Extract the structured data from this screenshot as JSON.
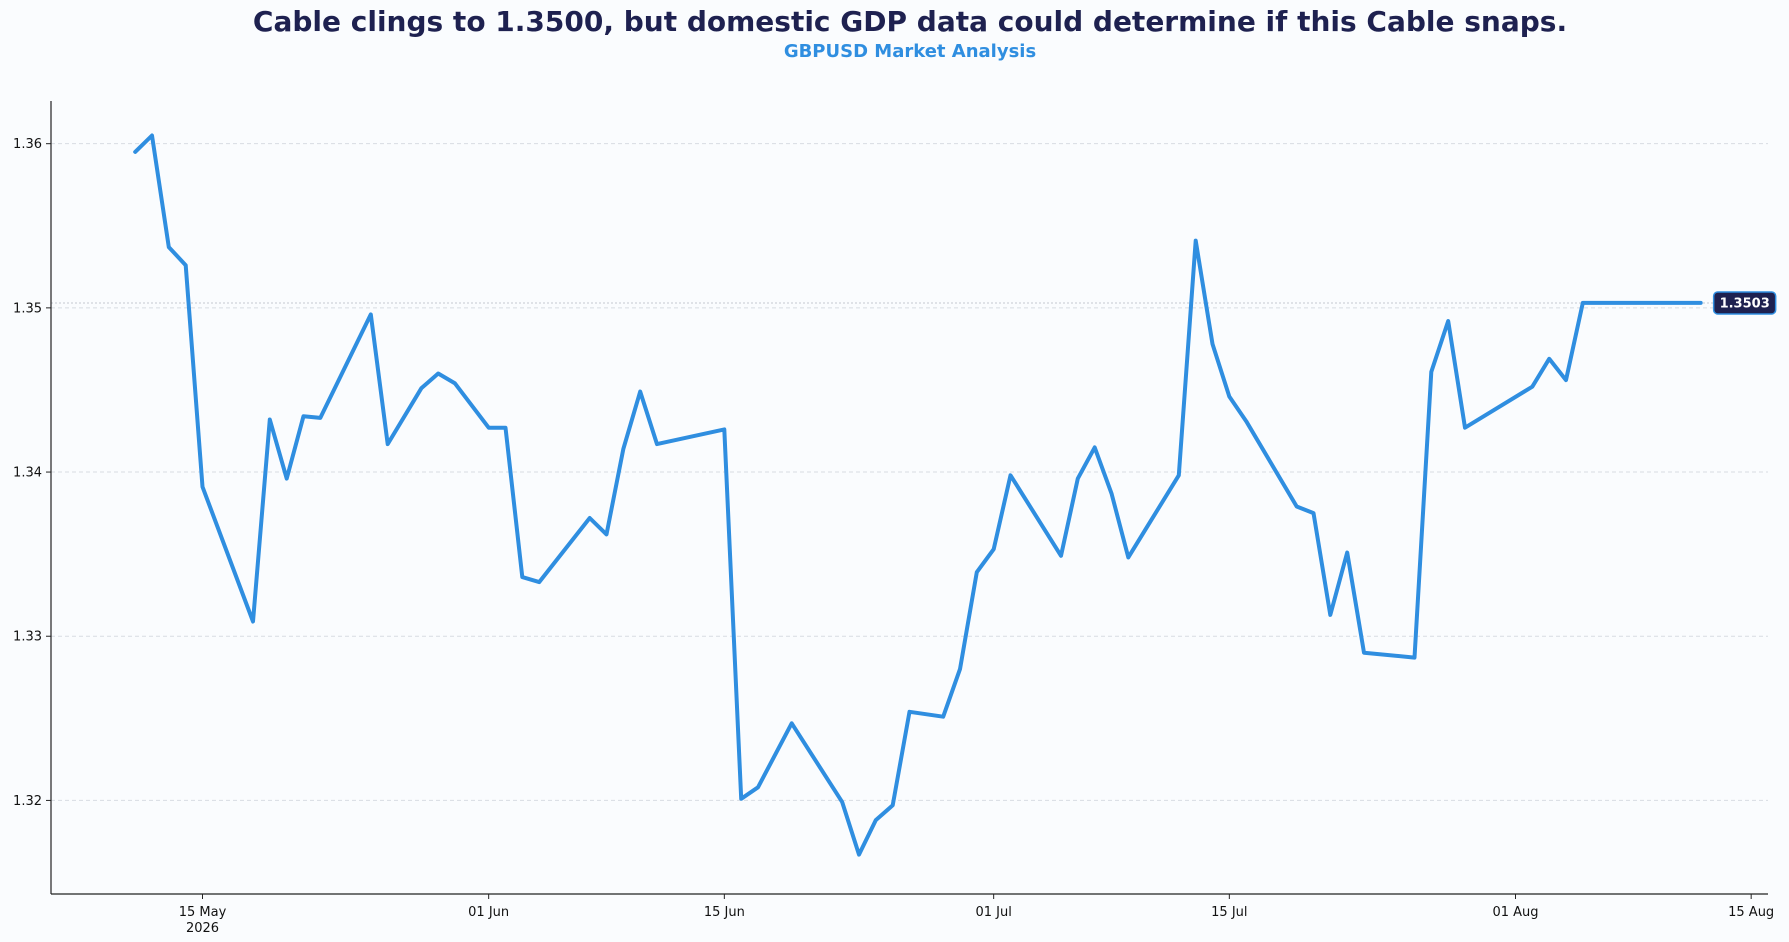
{
  "chart_data": {
    "type": "line",
    "title": "Cable clings to 1.3500, but domestic GDP data could determine if this Cable snaps.",
    "subtitle": "GBPUSD Market Analysis",
    "xlabel": "",
    "ylabel": "",
    "xlim": [
      "2026-05-06",
      "2026-08-16"
    ],
    "ylim": [
      1.3143,
      1.3626
    ],
    "y_ticks": [
      "1.32",
      "1.33",
      "1.34",
      "1.35",
      "1.36"
    ],
    "x_ticks": [
      {
        "label": "15 May",
        "sublabel": "2026",
        "date": "2026-05-15"
      },
      {
        "label": "01 Jun",
        "sublabel": "",
        "date": "2026-06-01"
      },
      {
        "label": "15 Jun",
        "sublabel": "",
        "date": "2026-06-15"
      },
      {
        "label": "01 Jul",
        "sublabel": "",
        "date": "2026-07-01"
      },
      {
        "label": "15 Jul",
        "sublabel": "",
        "date": "2026-07-15"
      },
      {
        "label": "01 Aug",
        "sublabel": "",
        "date": "2026-08-01"
      },
      {
        "label": "15 Aug",
        "sublabel": "",
        "date": "2026-08-15"
      }
    ],
    "grid": "horizontal-dashed",
    "reference_line": 1.3503,
    "last_value_label": "1.3503",
    "colors": {
      "line": "#2f8ee0",
      "badge": "#1e2150",
      "title": "#1e2150",
      "subtitle": "#2f8ee0"
    },
    "series": [
      {
        "x": [
          "2026-05-11",
          "2026-05-12",
          "2026-05-13",
          "2026-05-14",
          "2026-05-15",
          "2026-05-18",
          "2026-05-19",
          "2026-05-20",
          "2026-05-21",
          "2026-05-22",
          "2026-05-25",
          "2026-05-26",
          "2026-05-28",
          "2026-05-29",
          "2026-05-30",
          "2026-06-01",
          "2026-06-02",
          "2026-06-03",
          "2026-06-04",
          "2026-06-07",
          "2026-06-08",
          "2026-06-09",
          "2026-06-10",
          "2026-06-11",
          "2026-06-15",
          "2026-06-16",
          "2026-06-17",
          "2026-06-19",
          "2026-06-22",
          "2026-06-23",
          "2026-06-24",
          "2026-06-25",
          "2026-06-26",
          "2026-06-28",
          "2026-06-29",
          "2026-06-30",
          "2026-07-01",
          "2026-07-02",
          "2026-07-05",
          "2026-07-06",
          "2026-07-07",
          "2026-07-08",
          "2026-07-09",
          "2026-07-12",
          "2026-07-13",
          "2026-07-14",
          "2026-07-15",
          "2026-07-16",
          "2026-07-19",
          "2026-07-20",
          "2026-07-21",
          "2026-07-22",
          "2026-07-23",
          "2026-07-26",
          "2026-07-27",
          "2026-07-28",
          "2026-07-29",
          "2026-08-02",
          "2026-08-03",
          "2026-08-04",
          "2026-08-05",
          "2026-08-06",
          "2026-08-07",
          "2026-08-08",
          "2026-08-11",
          "2026-08-12"
        ],
        "y": [
          1.3595,
          1.3605,
          1.3537,
          1.3526,
          1.3391,
          1.3309,
          1.3432,
          1.3396,
          1.3434,
          1.3433,
          1.3496,
          1.3417,
          1.3451,
          1.346,
          1.3454,
          1.3427,
          1.3427,
          1.3336,
          1.3333,
          1.3372,
          1.3362,
          1.3414,
          1.3449,
          1.3417,
          1.3426,
          1.3201,
          1.3208,
          1.3247,
          1.3199,
          1.3167,
          1.3188,
          1.3197,
          1.3254,
          1.3251,
          1.328,
          1.3339,
          1.3353,
          1.3398,
          1.3349,
          1.3396,
          1.3415,
          1.3387,
          1.3348,
          1.3398,
          1.3541,
          1.3478,
          1.3446,
          1.3431,
          1.3379,
          1.3375,
          1.3313,
          1.3351,
          1.329,
          1.3287,
          1.3461,
          1.3492,
          1.3427,
          1.3452,
          1.3469,
          1.3456,
          1.3503,
          1.3503,
          1.3503,
          1.3503,
          1.3503,
          1.3503
        ]
      }
    ]
  }
}
